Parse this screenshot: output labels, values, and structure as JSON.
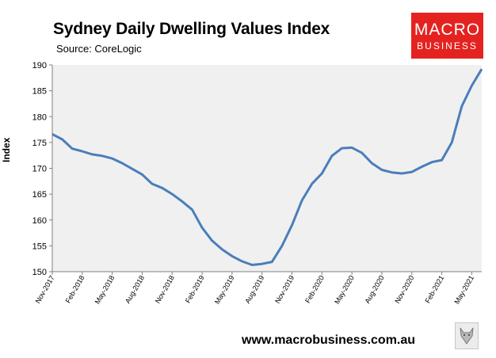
{
  "header": {
    "title": "Sydney Daily Dwelling Values Index",
    "subtitle": "Source: CoreLogic"
  },
  "logo": {
    "line1": "MACRO",
    "line2": "BUSINESS"
  },
  "footer": {
    "url": "www.macrobusiness.com.au"
  },
  "colors": {
    "line": "#4a7ebb",
    "plot_bg": "#f0f0f0",
    "logo_bg": "#e42320",
    "axis": "#808080"
  },
  "icons": {
    "fox": "fox-illustration-icon"
  },
  "chart_data": {
    "type": "line",
    "title": "Sydney Daily Dwelling Values Index",
    "xlabel": "",
    "ylabel": "Index",
    "ylim": [
      150,
      190
    ],
    "yticks": [
      150,
      155,
      160,
      165,
      170,
      175,
      180,
      185,
      190
    ],
    "xticks": [
      "Nov-2017",
      "Feb-2018",
      "May-2018",
      "Aug-2018",
      "Nov-2018",
      "Feb-2019",
      "May-2019",
      "Aug-2019",
      "Nov-2019",
      "Feb-2020",
      "May-2020",
      "Aug-2020",
      "Nov-2020",
      "Feb-2021",
      "May-2021"
    ],
    "grid": false,
    "legend": "none",
    "series": [
      {
        "x": [
          "Nov-2017",
          "Dec-2017",
          "Jan-2018",
          "Feb-2018",
          "Mar-2018",
          "Apr-2018",
          "May-2018",
          "Jun-2018",
          "Jul-2018",
          "Aug-2018",
          "Sep-2018",
          "Oct-2018",
          "Nov-2018",
          "Dec-2018",
          "Jan-2019",
          "Feb-2019",
          "Mar-2019",
          "Apr-2019",
          "May-2019",
          "Jun-2019",
          "Jul-2019",
          "Aug-2019",
          "Sep-2019",
          "Oct-2019",
          "Nov-2019",
          "Dec-2019",
          "Jan-2020",
          "Feb-2020",
          "Mar-2020",
          "Apr-2020",
          "May-2020",
          "Jun-2020",
          "Jul-2020",
          "Aug-2020",
          "Sep-2020",
          "Oct-2020",
          "Nov-2020",
          "Dec-2020",
          "Jan-2021",
          "Feb-2021",
          "Mar-2021",
          "Apr-2021",
          "May-2021",
          "Jun-2021"
        ],
        "values": [
          176.6,
          175.6,
          173.8,
          173.3,
          172.7,
          172.4,
          171.9,
          171.0,
          169.9,
          168.8,
          167.0,
          166.2,
          165.0,
          163.6,
          162.0,
          158.5,
          156.0,
          154.3,
          153.0,
          152.0,
          151.3,
          151.5,
          151.9,
          155.0,
          159.0,
          163.8,
          167.0,
          169.0,
          172.4,
          173.9,
          174.0,
          173.0,
          171.0,
          169.7,
          169.2,
          169.0,
          169.3,
          170.3,
          171.2,
          171.6,
          175.0,
          182.0,
          186.0,
          189.2
        ]
      }
    ]
  }
}
